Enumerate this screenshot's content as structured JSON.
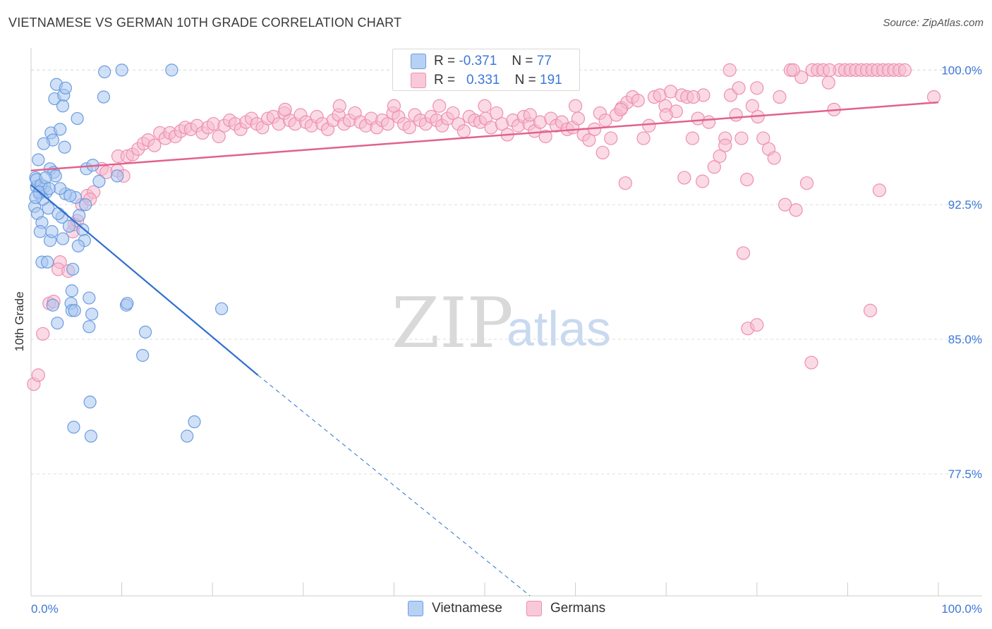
{
  "title": "VIETNAMESE VS GERMAN 10TH GRADE CORRELATION CHART",
  "source": "Source: ZipAtlas.com",
  "watermark": {
    "zip": "ZIP",
    "atlas": "atlas"
  },
  "legend": {
    "rows": [
      {
        "r_label": "R =",
        "r_value": "-0.371",
        "n_label": "N =",
        "n_value": "77"
      },
      {
        "r_label": "R =",
        "r_value": "0.331",
        "n_label": "N =",
        "n_value": "191"
      }
    ]
  },
  "colors": {
    "vietnamese_fill": "#a9c7f0",
    "vietnamese_stroke": "#6b9de0",
    "vietnamese_line": "#2f6fce",
    "germans_fill": "#f6bcd0",
    "germans_stroke": "#ee8fb0",
    "germans_line": "#e0628f",
    "axis_label_blue": "#3c78d8",
    "grid": "#dddddd"
  },
  "chart_data": {
    "type": "scatter",
    "title": "VIETNAMESE VS GERMAN 10TH GRADE CORRELATION CHART",
    "xlabel": "",
    "ylabel": "10th Grade",
    "xlim": [
      0,
      100
    ],
    "ylim": [
      70.7,
      100.8
    ],
    "x_tick_labels": [
      "0.0%",
      "100.0%"
    ],
    "y_ticks": [
      77.5,
      85.0,
      92.5,
      100.0
    ],
    "y_tick_labels": [
      "77.5%",
      "85.0%",
      "92.5%",
      "100.0%"
    ],
    "grid": true,
    "legend_position": "top-center",
    "series": [
      {
        "name": "Vietnamese",
        "r": -0.371,
        "n": 77,
        "trend": {
          "x": [
            0,
            25,
            55
          ],
          "y": [
            93.6,
            83.0,
            70.7
          ],
          "solid_until_x": 25
        },
        "points": [
          [
            0.8,
            95.0
          ],
          [
            0.5,
            94.0
          ],
          [
            0.6,
            93.5
          ],
          [
            0.9,
            93.1
          ],
          [
            0.4,
            92.4
          ],
          [
            0.7,
            92.0
          ],
          [
            1.2,
            91.5
          ],
          [
            1.5,
            93.5
          ],
          [
            1.7,
            93.2
          ],
          [
            1.9,
            92.3
          ],
          [
            2.1,
            94.5
          ],
          [
            2.5,
            94.3
          ],
          [
            2.2,
            96.5
          ],
          [
            2.4,
            96.1
          ],
          [
            1.4,
            95.9
          ],
          [
            3.2,
            96.7
          ],
          [
            3.7,
            95.7
          ],
          [
            2.6,
            98.4
          ],
          [
            2.8,
            99.2
          ],
          [
            3.6,
            98.6
          ],
          [
            3.8,
            99.0
          ],
          [
            3.5,
            98.0
          ],
          [
            5.1,
            97.3
          ],
          [
            2.1,
            90.5
          ],
          [
            2.3,
            91.0
          ],
          [
            3.4,
            91.8
          ],
          [
            3.5,
            90.6
          ],
          [
            4.2,
            91.3
          ],
          [
            4.9,
            92.9
          ],
          [
            5.3,
            91.9
          ],
          [
            5.7,
            91.1
          ],
          [
            5.9,
            90.5
          ],
          [
            5.2,
            90.2
          ],
          [
            6.0,
            92.5
          ],
          [
            3.8,
            93.1
          ],
          [
            4.3,
            93.0
          ],
          [
            3.2,
            93.4
          ],
          [
            6.1,
            94.5
          ],
          [
            6.8,
            94.7
          ],
          [
            9.5,
            94.1
          ],
          [
            1.2,
            89.3
          ],
          [
            1.8,
            89.3
          ],
          [
            4.6,
            88.9
          ],
          [
            4.5,
            87.7
          ],
          [
            6.4,
            87.3
          ],
          [
            4.4,
            87.0
          ],
          [
            4.5,
            86.6
          ],
          [
            6.7,
            86.4
          ],
          [
            4.8,
            86.6
          ],
          [
            2.4,
            86.9
          ],
          [
            2.9,
            85.9
          ],
          [
            6.4,
            85.7
          ],
          [
            10.5,
            86.9
          ],
          [
            10.6,
            87.0
          ],
          [
            21.0,
            86.7
          ],
          [
            12.6,
            85.4
          ],
          [
            12.3,
            84.1
          ],
          [
            6.5,
            81.5
          ],
          [
            4.7,
            80.1
          ],
          [
            6.6,
            79.6
          ],
          [
            17.2,
            79.6
          ],
          [
            18.0,
            80.4
          ],
          [
            8.1,
            99.9
          ],
          [
            10.0,
            100.0
          ],
          [
            15.5,
            100.0
          ],
          [
            8.0,
            98.5
          ],
          [
            0.6,
            93.9
          ],
          [
            1.1,
            93.6
          ],
          [
            1.3,
            92.8
          ],
          [
            0.9,
            93.2
          ],
          [
            2.7,
            94.1
          ],
          [
            0.5,
            92.9
          ],
          [
            1.6,
            94.0
          ],
          [
            3.0,
            92.0
          ],
          [
            1.0,
            91.0
          ],
          [
            7.5,
            93.8
          ],
          [
            2.0,
            93.4
          ]
        ]
      },
      {
        "name": "Germans",
        "r": 0.331,
        "n": 191,
        "trend": {
          "x": [
            0,
            100
          ],
          "y": [
            94.4,
            98.2
          ]
        },
        "points": [
          [
            0.3,
            82.5
          ],
          [
            0.8,
            83.0
          ],
          [
            1.3,
            85.3
          ],
          [
            2.0,
            87.0
          ],
          [
            2.5,
            87.1
          ],
          [
            3.2,
            89.3
          ],
          [
            3.0,
            88.9
          ],
          [
            4.1,
            88.8
          ],
          [
            4.6,
            91.0
          ],
          [
            4.8,
            91.4
          ],
          [
            5.1,
            91.6
          ],
          [
            5.6,
            92.5
          ],
          [
            6.2,
            93.0
          ],
          [
            6.9,
            93.2
          ],
          [
            6.5,
            92.8
          ],
          [
            7.8,
            94.5
          ],
          [
            8.3,
            94.3
          ],
          [
            9.5,
            94.4
          ],
          [
            10.2,
            94.1
          ],
          [
            9.6,
            95.2
          ],
          [
            10.6,
            95.2
          ],
          [
            11.2,
            95.3
          ],
          [
            11.8,
            95.6
          ],
          [
            12.4,
            95.9
          ],
          [
            12.9,
            96.1
          ],
          [
            13.6,
            95.8
          ],
          [
            14.2,
            96.5
          ],
          [
            14.8,
            96.2
          ],
          [
            15.3,
            96.5
          ],
          [
            15.9,
            96.3
          ],
          [
            16.5,
            96.6
          ],
          [
            17.0,
            96.8
          ],
          [
            17.6,
            96.7
          ],
          [
            18.3,
            96.9
          ],
          [
            18.9,
            96.5
          ],
          [
            19.5,
            96.8
          ],
          [
            20.1,
            97.0
          ],
          [
            20.7,
            96.3
          ],
          [
            21.3,
            96.9
          ],
          [
            21.9,
            97.2
          ],
          [
            22.5,
            97.0
          ],
          [
            23.1,
            96.7
          ],
          [
            23.7,
            97.1
          ],
          [
            24.3,
            97.3
          ],
          [
            24.9,
            97.0
          ],
          [
            25.5,
            96.8
          ],
          [
            26.1,
            97.3
          ],
          [
            26.7,
            97.4
          ],
          [
            27.3,
            97.0
          ],
          [
            27.9,
            97.6
          ],
          [
            28.5,
            97.2
          ],
          [
            29.1,
            97.0
          ],
          [
            29.7,
            97.5
          ],
          [
            30.3,
            97.1
          ],
          [
            30.9,
            96.9
          ],
          [
            31.5,
            97.4
          ],
          [
            32.1,
            97.0
          ],
          [
            32.7,
            96.7
          ],
          [
            33.3,
            97.2
          ],
          [
            33.9,
            97.5
          ],
          [
            34.5,
            97.0
          ],
          [
            35.1,
            97.2
          ],
          [
            35.7,
            97.6
          ],
          [
            36.3,
            97.1
          ],
          [
            36.9,
            96.9
          ],
          [
            37.5,
            97.3
          ],
          [
            38.1,
            96.8
          ],
          [
            38.7,
            97.2
          ],
          [
            39.3,
            97.0
          ],
          [
            39.9,
            97.6
          ],
          [
            40.5,
            97.4
          ],
          [
            41.1,
            97.0
          ],
          [
            41.7,
            96.8
          ],
          [
            42.3,
            97.5
          ],
          [
            42.9,
            97.2
          ],
          [
            43.5,
            97.0
          ],
          [
            44.1,
            97.4
          ],
          [
            44.7,
            97.2
          ],
          [
            45.3,
            96.9
          ],
          [
            45.9,
            97.3
          ],
          [
            46.5,
            97.6
          ],
          [
            47.1,
            97.0
          ],
          [
            47.7,
            96.6
          ],
          [
            48.3,
            97.4
          ],
          [
            48.9,
            97.2
          ],
          [
            49.5,
            97.1
          ],
          [
            50.1,
            97.3
          ],
          [
            50.7,
            96.8
          ],
          [
            51.3,
            97.6
          ],
          [
            51.9,
            97.0
          ],
          [
            52.5,
            96.4
          ],
          [
            53.1,
            97.2
          ],
          [
            53.7,
            96.9
          ],
          [
            54.3,
            97.4
          ],
          [
            54.9,
            97.0
          ],
          [
            55.5,
            96.6
          ],
          [
            56.1,
            97.1
          ],
          [
            56.7,
            96.3
          ],
          [
            57.3,
            97.3
          ],
          [
            57.9,
            96.9
          ],
          [
            58.5,
            97.1
          ],
          [
            59.1,
            96.7
          ],
          [
            59.7,
            96.8
          ],
          [
            60.3,
            97.3
          ],
          [
            60.9,
            96.4
          ],
          [
            61.5,
            96.1
          ],
          [
            62.1,
            96.7
          ],
          [
            62.7,
            97.6
          ],
          [
            63.3,
            97.2
          ],
          [
            63.9,
            96.2
          ],
          [
            64.5,
            97.5
          ],
          [
            65.1,
            97.9
          ],
          [
            65.7,
            98.2
          ],
          [
            66.3,
            98.5
          ],
          [
            66.9,
            98.3
          ],
          [
            67.5,
            96.2
          ],
          [
            68.1,
            96.9
          ],
          [
            68.7,
            98.5
          ],
          [
            69.3,
            98.6
          ],
          [
            69.9,
            98.0
          ],
          [
            70.5,
            98.8
          ],
          [
            71.1,
            97.7
          ],
          [
            71.7,
            98.6
          ],
          [
            72.3,
            98.5
          ],
          [
            72.9,
            96.2
          ],
          [
            73.5,
            97.3
          ],
          [
            74.1,
            98.6
          ],
          [
            74.7,
            97.1
          ],
          [
            75.3,
            94.6
          ],
          [
            75.9,
            95.2
          ],
          [
            76.5,
            96.2
          ],
          [
            77.1,
            98.6
          ],
          [
            77.7,
            97.5
          ],
          [
            78.3,
            96.2
          ],
          [
            78.9,
            93.9
          ],
          [
            79.5,
            98.0
          ],
          [
            80.1,
            97.4
          ],
          [
            80.7,
            96.2
          ],
          [
            81.3,
            95.6
          ],
          [
            81.9,
            95.1
          ],
          [
            82.5,
            98.5
          ],
          [
            83.1,
            92.5
          ],
          [
            83.7,
            100.0
          ],
          [
            84.3,
            92.2
          ],
          [
            84.9,
            99.6
          ],
          [
            85.5,
            93.7
          ],
          [
            86.1,
            100.0
          ],
          [
            86.7,
            100.0
          ],
          [
            87.3,
            100.0
          ],
          [
            87.9,
            99.3
          ],
          [
            88.5,
            97.8
          ],
          [
            89.1,
            100.0
          ],
          [
            89.7,
            100.0
          ],
          [
            90.3,
            100.0
          ],
          [
            90.9,
            100.0
          ],
          [
            91.5,
            100.0
          ],
          [
            92.1,
            100.0
          ],
          [
            92.7,
            100.0
          ],
          [
            93.3,
            100.0
          ],
          [
            93.9,
            100.0
          ],
          [
            94.5,
            100.0
          ],
          [
            95.1,
            100.0
          ],
          [
            95.7,
            100.0
          ],
          [
            96.3,
            100.0
          ],
          [
            84.0,
            100.0
          ],
          [
            77.0,
            100.0
          ],
          [
            88.0,
            100.0
          ],
          [
            99.5,
            98.5
          ],
          [
            50.0,
            98.0
          ],
          [
            45.0,
            98.0
          ],
          [
            40.0,
            98.0
          ],
          [
            34.0,
            98.0
          ],
          [
            28.0,
            97.8
          ],
          [
            60.0,
            98.0
          ],
          [
            65.0,
            97.8
          ],
          [
            70.0,
            97.5
          ],
          [
            73.0,
            98.5
          ],
          [
            78.0,
            99.0
          ],
          [
            80.0,
            99.0
          ],
          [
            76.5,
            95.8
          ],
          [
            55.0,
            97.5
          ],
          [
            63.0,
            95.4
          ],
          [
            65.5,
            93.7
          ],
          [
            72.0,
            94.0
          ],
          [
            74.0,
            93.8
          ],
          [
            78.5,
            89.8
          ],
          [
            79.0,
            85.6
          ],
          [
            80.0,
            85.8
          ],
          [
            86.0,
            83.7
          ],
          [
            92.5,
            86.6
          ],
          [
            93.5,
            93.3
          ]
        ]
      }
    ]
  }
}
